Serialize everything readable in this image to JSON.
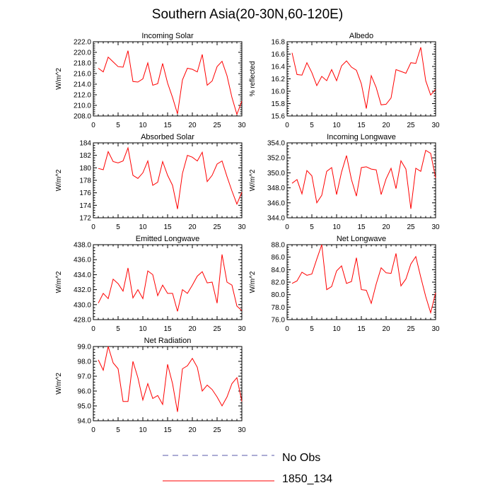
{
  "title": "Southern Asia(20-30N,60-120E)",
  "legend": [
    {
      "label": "No Obs",
      "color": "#5a5aa8",
      "style": "dashed"
    },
    {
      "label": "1850_134",
      "color": "#ff0000",
      "style": "solid"
    }
  ],
  "chart_data": [
    {
      "type": "line",
      "title": "Incoming Solar",
      "ylabel": "W/m^2",
      "xlabel": "",
      "xlim": [
        0,
        30
      ],
      "ylim": [
        208,
        222
      ],
      "xticks": [
        0,
        5,
        10,
        15,
        20,
        25,
        30
      ],
      "yticks": [
        "208.0",
        "210.0",
        "212.0",
        "214.0",
        "216.0",
        "218.0",
        "220.0",
        "222.0"
      ],
      "series": [
        {
          "color": "#ff0000",
          "x": [
            1,
            2,
            3,
            4,
            5,
            6,
            7,
            8,
            9,
            10,
            11,
            12,
            13,
            14,
            15,
            16,
            17,
            18,
            19,
            20,
            21,
            22,
            23,
            24,
            25,
            26,
            27,
            28,
            29,
            30
          ],
          "values": [
            217.0,
            216.3,
            219.1,
            218.2,
            217.3,
            217.2,
            220.3,
            214.5,
            214.4,
            215.0,
            218.0,
            213.8,
            214.1,
            217.9,
            214.2,
            211.5,
            208.4,
            214.8,
            217.0,
            216.8,
            216.3,
            219.6,
            213.8,
            214.6,
            217.3,
            218.3,
            215.6,
            211.5,
            208.3,
            210.8
          ]
        }
      ]
    },
    {
      "type": "line",
      "title": "Albedo",
      "ylabel": "% reflected",
      "xlabel": "",
      "xlim": [
        0,
        30
      ],
      "ylim": [
        15.6,
        16.8
      ],
      "xticks": [
        0,
        5,
        10,
        15,
        20,
        25,
        30
      ],
      "yticks": [
        "15.6",
        "15.8",
        "16.0",
        "16.2",
        "16.4",
        "16.6",
        "16.8"
      ],
      "series": [
        {
          "color": "#ff0000",
          "x": [
            1,
            2,
            3,
            4,
            5,
            6,
            7,
            8,
            9,
            10,
            11,
            12,
            13,
            14,
            15,
            16,
            17,
            18,
            19,
            20,
            21,
            22,
            23,
            24,
            25,
            26,
            27,
            28,
            29,
            30
          ],
          "values": [
            16.62,
            16.27,
            16.26,
            16.46,
            16.3,
            16.09,
            16.24,
            16.17,
            16.35,
            16.17,
            16.41,
            16.49,
            16.39,
            16.34,
            16.12,
            15.72,
            16.25,
            16.06,
            15.78,
            15.79,
            15.89,
            16.35,
            16.32,
            16.29,
            16.46,
            16.45,
            16.71,
            16.17,
            15.94,
            16.03
          ]
        }
      ]
    },
    {
      "type": "line",
      "title": "Absorbed Solar",
      "ylabel": "W/m^2",
      "xlabel": "",
      "xlim": [
        0,
        30
      ],
      "ylim": [
        172,
        184
      ],
      "xticks": [
        0,
        5,
        10,
        15,
        20,
        25,
        30
      ],
      "yticks": [
        "172",
        "174",
        "176",
        "178",
        "180",
        "182",
        "184"
      ],
      "series": [
        {
          "color": "#ff0000",
          "x": [
            1,
            2,
            3,
            4,
            5,
            6,
            7,
            8,
            9,
            10,
            11,
            12,
            13,
            14,
            15,
            16,
            17,
            18,
            19,
            20,
            21,
            22,
            23,
            24,
            25,
            26,
            27,
            28,
            29,
            30
          ],
          "values": [
            179.9,
            179.7,
            182.6,
            181.0,
            180.8,
            181.1,
            183.2,
            178.8,
            178.3,
            179.2,
            181.1,
            177.2,
            177.7,
            181.0,
            178.8,
            177.2,
            173.4,
            179.1,
            182.0,
            181.7,
            181.1,
            182.5,
            177.8,
            178.8,
            180.6,
            181.1,
            178.6,
            176.3,
            174.2,
            176.1
          ]
        }
      ]
    },
    {
      "type": "line",
      "title": "Incoming Longwave",
      "ylabel": "W/m^2",
      "xlabel": "",
      "xlim": [
        0,
        30
      ],
      "ylim": [
        344,
        354
      ],
      "xticks": [
        0,
        5,
        10,
        15,
        20,
        25,
        30
      ],
      "yticks": [
        "344.0",
        "346.0",
        "348.0",
        "350.0",
        "352.0",
        "354.0"
      ],
      "series": [
        {
          "color": "#ff0000",
          "x": [
            1,
            2,
            3,
            4,
            5,
            6,
            7,
            8,
            9,
            10,
            11,
            12,
            13,
            14,
            15,
            16,
            17,
            18,
            19,
            20,
            21,
            22,
            23,
            24,
            25,
            26,
            27,
            28,
            29,
            30
          ],
          "values": [
            348.6,
            349.1,
            347.2,
            350.3,
            349.6,
            346.0,
            347.0,
            350.2,
            350.7,
            347.1,
            350.1,
            352.3,
            349.1,
            346.9,
            350.7,
            350.8,
            350.5,
            350.4,
            347.1,
            349.2,
            350.6,
            347.9,
            351.6,
            350.5,
            345.2,
            350.6,
            350.2,
            353.0,
            352.6,
            349.3
          ]
        }
      ]
    },
    {
      "type": "line",
      "title": "Emitted Longwave",
      "ylabel": "W/m^2",
      "xlabel": "",
      "xlim": [
        0,
        30
      ],
      "ylim": [
        428,
        438
      ],
      "xticks": [
        0,
        5,
        10,
        15,
        20,
        25,
        30
      ],
      "yticks": [
        "428.0",
        "430.0",
        "432.0",
        "434.0",
        "436.0",
        "438.0"
      ],
      "series": [
        {
          "color": "#ff0000",
          "x": [
            1,
            2,
            3,
            4,
            5,
            6,
            7,
            8,
            9,
            10,
            11,
            12,
            13,
            14,
            15,
            16,
            17,
            18,
            19,
            20,
            21,
            22,
            23,
            24,
            25,
            26,
            27,
            28,
            29,
            30
          ],
          "values": [
            430.2,
            431.5,
            430.8,
            433.4,
            432.8,
            431.8,
            434.9,
            430.9,
            432.0,
            430.8,
            434.5,
            434.0,
            431.2,
            432.6,
            431.5,
            431.5,
            429.1,
            432.0,
            431.5,
            432.6,
            433.8,
            434.4,
            432.9,
            433.0,
            430.2,
            436.7,
            433.0,
            432.6,
            429.8,
            429.2
          ]
        }
      ]
    },
    {
      "type": "line",
      "title": "Net Longwave",
      "ylabel": "W/m^2",
      "xlabel": "",
      "xlim": [
        0,
        30
      ],
      "ylim": [
        76,
        88
      ],
      "xticks": [
        0,
        5,
        10,
        15,
        20,
        25,
        30
      ],
      "yticks": [
        "76.0",
        "78.0",
        "80.0",
        "82.0",
        "84.0",
        "86.0",
        "88.0"
      ],
      "series": [
        {
          "color": "#ff0000",
          "x": [
            1,
            2,
            3,
            4,
            5,
            6,
            7,
            8,
            9,
            10,
            11,
            12,
            13,
            14,
            15,
            16,
            17,
            18,
            19,
            20,
            21,
            22,
            23,
            24,
            25,
            26,
            27,
            28,
            29,
            30
          ],
          "values": [
            81.8,
            82.2,
            83.6,
            83.1,
            83.3,
            85.7,
            88.0,
            80.8,
            81.3,
            83.8,
            84.6,
            81.8,
            82.1,
            85.9,
            80.8,
            80.7,
            78.6,
            81.7,
            84.3,
            83.5,
            83.4,
            86.6,
            81.4,
            82.5,
            84.9,
            86.1,
            82.8,
            79.7,
            77.1,
            80.3
          ]
        }
      ]
    },
    {
      "type": "line",
      "title": "Net Radiation",
      "ylabel": "W/m^2",
      "xlabel": "",
      "xlim": [
        0,
        30
      ],
      "ylim": [
        94,
        99
      ],
      "xticks": [
        0,
        5,
        10,
        15,
        20,
        25,
        30
      ],
      "yticks": [
        "94.0",
        "95.0",
        "96.0",
        "97.0",
        "98.0",
        "99.0"
      ],
      "series": [
        {
          "color": "#ff0000",
          "x": [
            1,
            2,
            3,
            4,
            5,
            6,
            7,
            8,
            9,
            10,
            11,
            12,
            13,
            14,
            15,
            16,
            17,
            18,
            19,
            20,
            21,
            22,
            23,
            24,
            25,
            26,
            27,
            28,
            29,
            30
          ],
          "values": [
            98.1,
            97.4,
            99.0,
            97.9,
            97.5,
            95.3,
            95.3,
            98.0,
            96.9,
            95.4,
            96.5,
            95.5,
            95.7,
            95.1,
            97.8,
            96.5,
            94.6,
            97.5,
            97.7,
            98.2,
            97.6,
            96.0,
            96.4,
            96.1,
            95.6,
            95.0,
            95.6,
            96.5,
            96.9,
            95.3
          ]
        }
      ]
    }
  ]
}
